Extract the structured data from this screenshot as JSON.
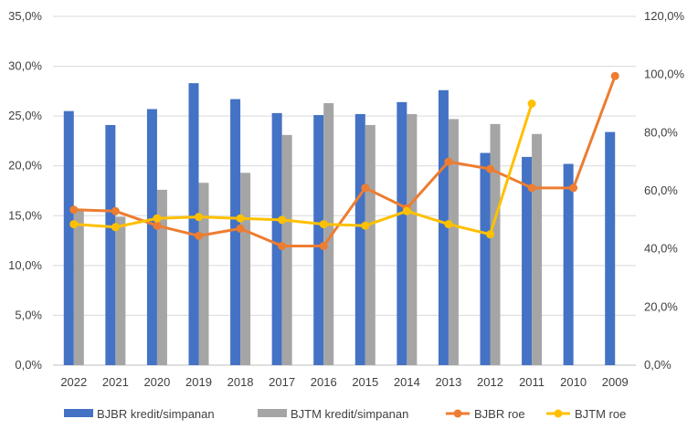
{
  "chart_data": {
    "type": "bar",
    "categories": [
      "2022",
      "2021",
      "2020",
      "2019",
      "2018",
      "2017",
      "2016",
      "2015",
      "2014",
      "2013",
      "2012",
      "2011",
      "2010",
      "2009"
    ],
    "y_left": {
      "ylim": [
        0,
        35
      ],
      "ticks": [
        "0,0%",
        "5,0%",
        "10,0%",
        "15,0%",
        "20,0%",
        "25,0%",
        "30,0%",
        "35,0%"
      ]
    },
    "y_right": {
      "ylim": [
        0,
        120
      ],
      "ticks": [
        "0,0%",
        "20,0%",
        "40,0%",
        "60,0%",
        "80,0%",
        "100,0%",
        "120,0%"
      ]
    },
    "grid": true,
    "legend_position": "bottom",
    "series": [
      {
        "name": "BJBR kredit/simpanan",
        "type": "bar",
        "axis": "left",
        "color": "#4472C4",
        "values": [
          25.5,
          24.1,
          25.7,
          28.3,
          26.7,
          25.3,
          25.1,
          25.2,
          26.4,
          27.6,
          21.3,
          20.9,
          20.2,
          23.4
        ]
      },
      {
        "name": "BJTM kredit/simpanan",
        "type": "bar",
        "axis": "left",
        "color": "#A5A5A5",
        "values": [
          15.7,
          14.9,
          17.6,
          18.3,
          19.3,
          23.1,
          26.3,
          24.1,
          25.2,
          24.7,
          24.2,
          23.2,
          null,
          null
        ]
      },
      {
        "name": "BJBR roe",
        "type": "line",
        "axis": "right",
        "color": "#ED7D31",
        "values": [
          53.5,
          53,
          48,
          44.5,
          47,
          41,
          41,
          61,
          54,
          70,
          67.5,
          61,
          61,
          99.5
        ]
      },
      {
        "name": "BJTM roe",
        "type": "line",
        "axis": "right",
        "color": "#FFC000",
        "values": [
          48.5,
          47.5,
          50.5,
          51,
          50.5,
          50,
          48.5,
          48,
          53,
          48.5,
          45,
          90,
          null,
          null
        ]
      }
    ]
  }
}
